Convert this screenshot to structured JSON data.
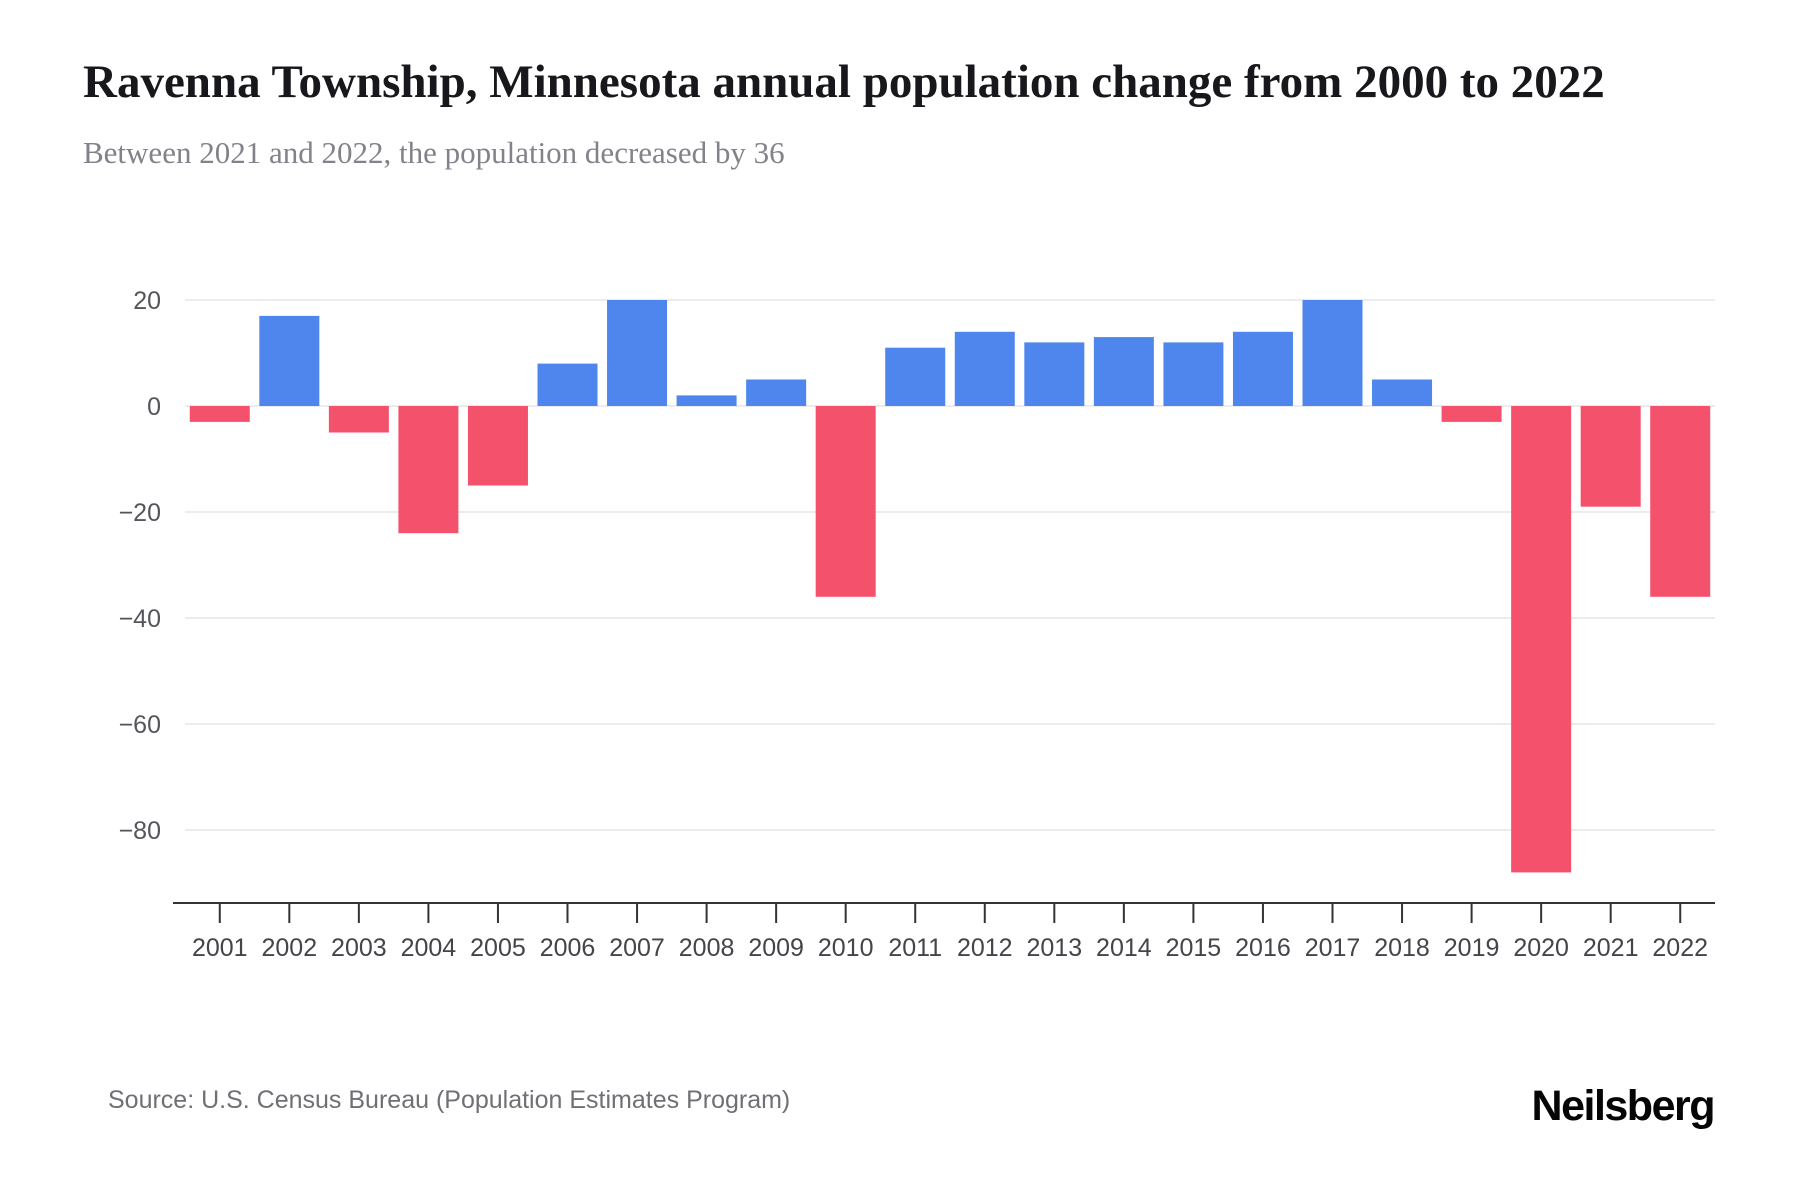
{
  "header": {
    "title": "Ravenna Township, Minnesota annual population change from 2000 to 2022",
    "subtitle": "Between 2021 and 2022, the population decreased by 36"
  },
  "chart_data": {
    "type": "bar",
    "title": "Ravenna Township, Minnesota annual population change from 2000 to 2022",
    "categories": [
      "2001",
      "2002",
      "2003",
      "2004",
      "2005",
      "2006",
      "2007",
      "2008",
      "2009",
      "2010",
      "2011",
      "2012",
      "2013",
      "2014",
      "2015",
      "2016",
      "2017",
      "2018",
      "2019",
      "2020",
      "2021",
      "2022"
    ],
    "values": [
      -3,
      17,
      -5,
      -24,
      -15,
      8,
      20,
      2,
      5,
      -36,
      11,
      14,
      12,
      13,
      12,
      14,
      20,
      5,
      -3,
      -88,
      -19,
      -36
    ],
    "xlabel": "",
    "ylabel": "",
    "yticks": [
      20,
      0,
      -20,
      -40,
      -60,
      -80
    ],
    "ylim": [
      -94,
      22
    ],
    "grid": true,
    "legend": false,
    "colors": {
      "positive": "#4e86ee",
      "negative": "#f4516c",
      "gridline": "#ececec",
      "axis": "#333333",
      "tick_label": "#44444a",
      "y_label": "#55555b"
    }
  },
  "footer": {
    "source": "Source: U.S. Census Bureau (Population Estimates Program)",
    "brand": "Neilsberg"
  }
}
